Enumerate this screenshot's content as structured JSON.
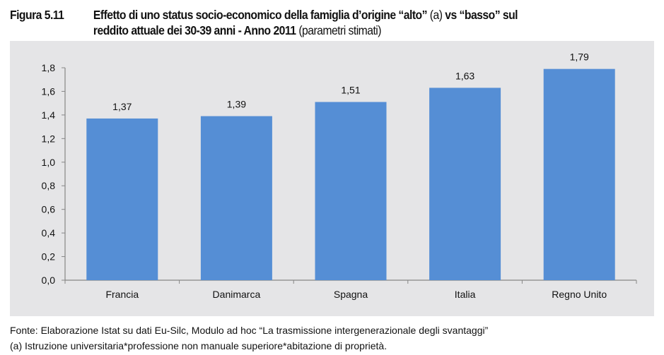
{
  "figure_label": "Figura 5.11",
  "title_bold_1": "Effetto di uno status socio-economico della famiglia d’origine “alto”",
  "title_normal_1": "(a)",
  "title_bold_2": "vs “basso” sul",
  "title_bold_3": "reddito attuale dei 30-39 anni - Anno 2011",
  "title_normal_2": "(parametri stimati)",
  "chart_data": {
    "type": "bar",
    "categories": [
      "Francia",
      "Danimarca",
      "Spagna",
      "Italia",
      "Regno Unito"
    ],
    "values": [
      1.37,
      1.39,
      1.51,
      1.63,
      1.79
    ],
    "data_labels": [
      "1,37",
      "1,39",
      "1,51",
      "1,63",
      "1,79"
    ],
    "ylim": [
      0,
      1.8
    ],
    "yticks": [
      "0,0",
      "0,2",
      "0,4",
      "0,6",
      "0,8",
      "1,0",
      "1,2",
      "1,4",
      "1,6",
      "1,8"
    ],
    "grid": false,
    "bar_color": "#558ed5",
    "background": "#e5e5e7"
  },
  "footer": {
    "source": "Fonte: Elaborazione Istat su dati Eu-Silc, Modulo ad hoc “La trasmissione intergenerazionale degli svantaggi”",
    "note": "(a) Istruzione universitaria*professione non manuale superiore*abitazione di proprietà."
  }
}
